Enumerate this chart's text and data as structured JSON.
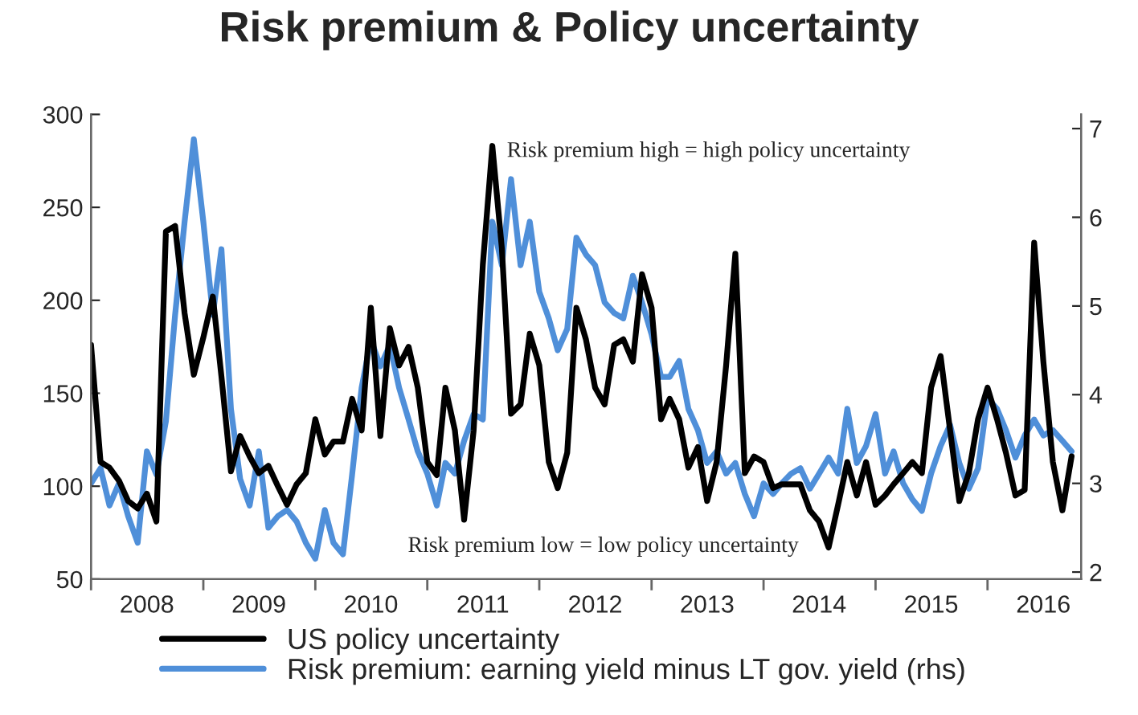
{
  "chart_data": {
    "type": "line",
    "title": "Risk premium & Policy uncertainty",
    "x": [
      "2008-01",
      "2008-02",
      "2008-03",
      "2008-04",
      "2008-05",
      "2008-06",
      "2008-07",
      "2008-08",
      "2008-09",
      "2008-10",
      "2008-11",
      "2008-12",
      "2009-01",
      "2009-02",
      "2009-03",
      "2009-04",
      "2009-05",
      "2009-06",
      "2009-07",
      "2009-08",
      "2009-09",
      "2009-10",
      "2009-11",
      "2009-12",
      "2010-01",
      "2010-02",
      "2010-03",
      "2010-04",
      "2010-05",
      "2010-06",
      "2010-07",
      "2010-08",
      "2010-09",
      "2010-10",
      "2010-11",
      "2010-12",
      "2011-01",
      "2011-02",
      "2011-03",
      "2011-04",
      "2011-05",
      "2011-06",
      "2011-07",
      "2011-08",
      "2011-09",
      "2011-10",
      "2011-11",
      "2011-12",
      "2012-01",
      "2012-02",
      "2012-03",
      "2012-04",
      "2012-05",
      "2012-06",
      "2012-07",
      "2012-08",
      "2012-09",
      "2012-10",
      "2012-11",
      "2012-12",
      "2013-01",
      "2013-02",
      "2013-03",
      "2013-04",
      "2013-05",
      "2013-06",
      "2013-07",
      "2013-08",
      "2013-09",
      "2013-10",
      "2013-11",
      "2013-12",
      "2014-01",
      "2014-02",
      "2014-03",
      "2014-04",
      "2014-05",
      "2014-06",
      "2014-07",
      "2014-08",
      "2014-09",
      "2014-10",
      "2014-11",
      "2014-12",
      "2015-01",
      "2015-02",
      "2015-03",
      "2015-04",
      "2015-05",
      "2015-06",
      "2015-07",
      "2015-08",
      "2015-09",
      "2015-10",
      "2015-11",
      "2015-12",
      "2016-01",
      "2016-02",
      "2016-03",
      "2016-04",
      "2016-05",
      "2016-06",
      "2016-07",
      "2016-08",
      "2016-09",
      "2016-10"
    ],
    "series": [
      {
        "name": "US policy uncertainty",
        "color": "#000000",
        "values": [
          176,
          113,
          110,
          103,
          92,
          88,
          96,
          81,
          237,
          240,
          193,
          160,
          180,
          202,
          159,
          108,
          127,
          116,
          107,
          111,
          100,
          90,
          101,
          107,
          136,
          117,
          124,
          124,
          147,
          130,
          196,
          127,
          185,
          165,
          175,
          153,
          113,
          106,
          153,
          130,
          82,
          130,
          219,
          283,
          228,
          139,
          144,
          182,
          165,
          113,
          99,
          118,
          196,
          179,
          153,
          144,
          176,
          179,
          167,
          214,
          196,
          136,
          147,
          136,
          110,
          121,
          92,
          113,
          165,
          225,
          107,
          116,
          113,
          99,
          101,
          101,
          101,
          87,
          81,
          67,
          90,
          113,
          95,
          113,
          90,
          95,
          101,
          107,
          113,
          107,
          153,
          170,
          130,
          92,
          107,
          136,
          153,
          136,
          118,
          95,
          98,
          231,
          167,
          113,
          87,
          116
        ]
      },
      {
        "name": "Risk premium: earning yield minus LT gov. yield (rhs)",
        "color": "#4f8fd9",
        "axis": "y2",
        "values": [
          3.0,
          3.17,
          2.75,
          3.0,
          2.63,
          2.33,
          3.36,
          3.1,
          3.7,
          4.9,
          5.95,
          6.88,
          5.95,
          4.9,
          5.64,
          3.84,
          3.05,
          2.75,
          3.36,
          2.5,
          2.63,
          2.7,
          2.57,
          2.33,
          2.15,
          2.7,
          2.33,
          2.2,
          3.1,
          4.08,
          4.62,
          4.32,
          4.56,
          4.08,
          3.72,
          3.36,
          3.11,
          2.75,
          3.23,
          3.11,
          3.48,
          3.78,
          3.72,
          5.95,
          5.46,
          6.43,
          5.46,
          5.95,
          5.16,
          4.86,
          4.5,
          4.74,
          5.77,
          5.58,
          5.46,
          5.04,
          4.92,
          4.86,
          5.34,
          5.04,
          4.68,
          4.2,
          4.2,
          4.38,
          3.84,
          3.6,
          3.23,
          3.36,
          3.11,
          3.23,
          2.88,
          2.63,
          3.0,
          2.88,
          3.0,
          3.11,
          3.17,
          2.94,
          3.11,
          3.29,
          3.11,
          3.84,
          3.23,
          3.42,
          3.78,
          3.11,
          3.36,
          3.0,
          2.82,
          2.69,
          3.11,
          3.42,
          3.66,
          3.23,
          2.94,
          3.17,
          3.96,
          3.84,
          3.6,
          3.29,
          3.54,
          3.72,
          3.54,
          3.6,
          3.48,
          3.36
        ]
      }
    ],
    "xlim": [
      "2008-01-01",
      "2016-11-01"
    ],
    "xticks": [
      {
        "value": "2008-01-01",
        "label": null
      },
      {
        "value": "2008-07-01",
        "label": "2008"
      },
      {
        "value": "2009-01-01",
        "label": null
      },
      {
        "value": "2009-07-01",
        "label": "2009"
      },
      {
        "value": "2010-01-01",
        "label": null
      },
      {
        "value": "2010-07-01",
        "label": "2010"
      },
      {
        "value": "2011-01-01",
        "label": null
      },
      {
        "value": "2011-07-01",
        "label": "2011"
      },
      {
        "value": "2012-01-01",
        "label": null
      },
      {
        "value": "2012-07-01",
        "label": "2012"
      },
      {
        "value": "2013-01-01",
        "label": null
      },
      {
        "value": "2013-07-01",
        "label": "2013"
      },
      {
        "value": "2014-01-01",
        "label": null
      },
      {
        "value": "2014-07-01",
        "label": "2014"
      },
      {
        "value": "2015-01-01",
        "label": null
      },
      {
        "value": "2015-07-01",
        "label": "2015"
      },
      {
        "value": "2016-01-01",
        "label": null
      },
      {
        "value": "2016-07-01",
        "label": "2016"
      }
    ],
    "ylim": [
      50,
      300
    ],
    "yticks": [
      50,
      100,
      150,
      200,
      250,
      300
    ],
    "y2lim": [
      1.92,
      7.16
    ],
    "y2ticks": [
      2,
      3,
      4,
      5,
      6,
      7
    ],
    "annotations": [
      "Risk premium high = high policy uncertainty",
      "Risk premium low = low policy uncertainty"
    ],
    "grid": false,
    "legend": "bottom",
    "marker": "none",
    "line_style": "solid"
  }
}
